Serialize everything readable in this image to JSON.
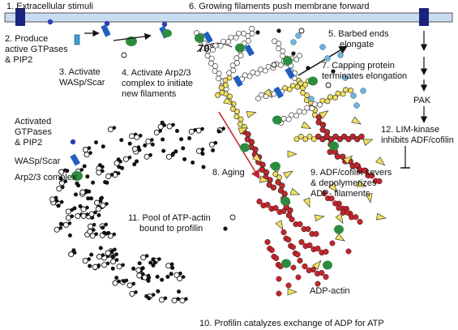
{
  "labels": {
    "step1": "1. Extracellular stimuli",
    "step2_line1": "2. Produce",
    "step2_line2": "active GTPases",
    "step2_line3": "& PIP2",
    "step3_line1": "3. Activate",
    "step3_line2": "WASp/Scar",
    "step4_line1": "4. Activate Arp2/3",
    "step4_line2": "complex to initiate",
    "step4_line3": "new filaments",
    "step5_line1": "5. Barbed ends",
    "step5_line2": "elongate",
    "step6": "6. Growing filaments push membrane forward",
    "step7_line1": "7. Capping protein",
    "step7_line2": "terminates elongation",
    "step8": "8. Aging",
    "step9_line1": "9. ADF/cofilin severs",
    "step9_line2": "& depolymerizes",
    "step9_line3": "ADP- filaments",
    "step10": "10.  Profilin catalyzes exchange of ADP for ATP",
    "step11_line1": "11. Pool of ATP-actin",
    "step11_line2": "bound to profilin",
    "step12_line1": "12. LIM-kinase",
    "step12_line2": "inhibits ADF/cofilin",
    "pak": "PAK",
    "angle": "70°",
    "adp_actin": "ADP-actin"
  },
  "legend": {
    "gtpases_line1": "Activated",
    "gtpases_line2": "GTPases",
    "gtpases_line3": "& PIP2",
    "wasp": "WASp/Scar",
    "arp": "Arp2/3 complex"
  },
  "colors": {
    "membrane": "#c8dcf0",
    "receptor": "#1a237e",
    "gtpase": "#2d3db8",
    "wasp": "#1f5fbf",
    "arp": "#2e8b3e",
    "atp_actin": "#ffffff",
    "adp_pi_actin": "#f0e060",
    "adp_actin": "#c0272d",
    "cofilin": "#f0e060",
    "capping": "#6fb7e0",
    "aging_arrow": "#c0272d"
  }
}
